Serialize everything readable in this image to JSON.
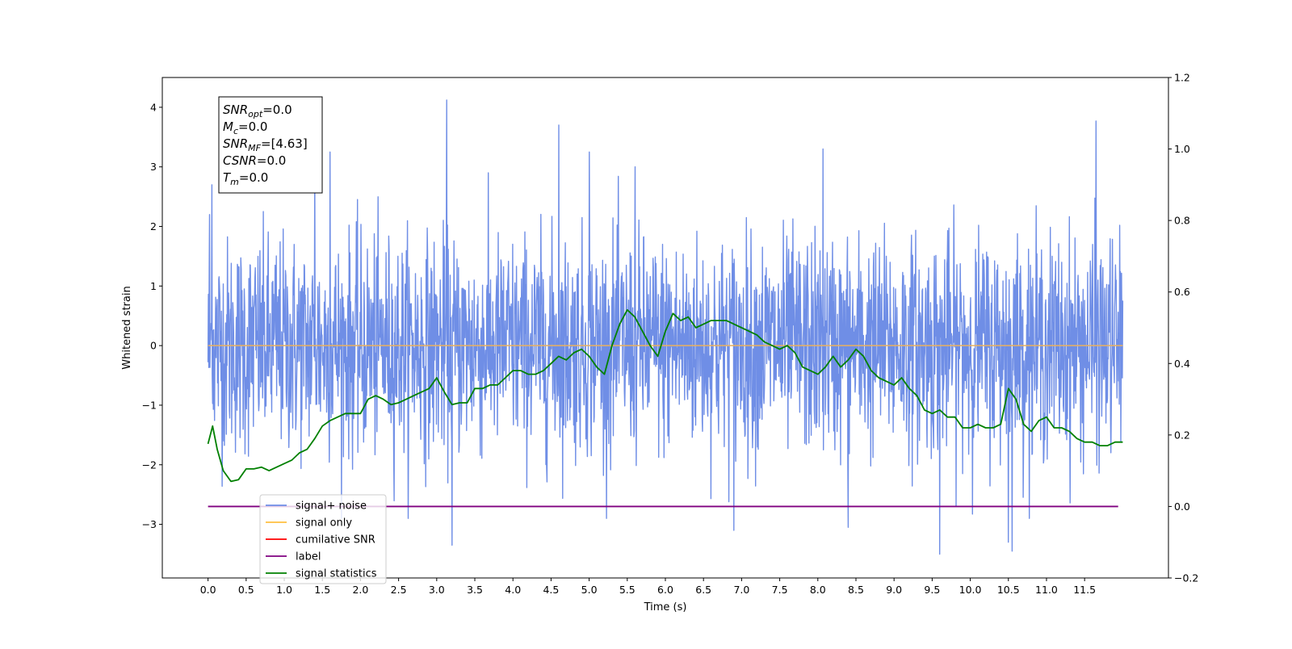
{
  "chart_data": {
    "type": "line",
    "title": "",
    "xlabel": "Time (s)",
    "ylabel": "Whitened strain",
    "xlim": [
      -0.6,
      12.6
    ],
    "ylim": [
      -3.9,
      4.5
    ],
    "y2lim": [
      -0.2,
      1.2
    ],
    "x_ticks": [
      "0.0",
      "0.5",
      "1.0",
      "1.5",
      "2.0",
      "2.5",
      "3.0",
      "3.5",
      "4.0",
      "4.5",
      "5.0",
      "5.5",
      "6.0",
      "6.5",
      "7.0",
      "7.5",
      "8.0",
      "8.5",
      "9.0",
      "9.5",
      "10.0",
      "10.5",
      "11.0",
      "11.5"
    ],
    "y_ticks": [
      "-3",
      "-2",
      "-1",
      "0",
      "1",
      "2",
      "3",
      "4"
    ],
    "y2_ticks": [
      "-0.2",
      "0.0",
      "0.2",
      "0.4",
      "0.6",
      "0.8",
      "1.0",
      "1.2"
    ],
    "grid": false,
    "legend_position": "lower-left",
    "legend": [
      "signal+ noise",
      "signal only",
      "cumilative SNR",
      "label",
      "signal statistics"
    ],
    "colors": {
      "noise": "#6f8ee6",
      "signal_only": "#ffbf40",
      "cumulative_snr": "#ff0000",
      "label": "#800080",
      "statistics": "#008000",
      "zero_line": "#e8b060"
    },
    "annotation_lines": [
      {
        "name": "SNR",
        "sub": "opt",
        "value": "=0.0"
      },
      {
        "name": "M",
        "sub": "c",
        "value": "=0.0"
      },
      {
        "name": "SNR",
        "sub": "MF",
        "value": "=[4.63]"
      },
      {
        "name": "CSNR",
        "sub": "",
        "value": "=0.0"
      },
      {
        "name": "T",
        "sub": "m",
        "value": "=0.0"
      }
    ],
    "series": [
      {
        "name": "signal+ noise",
        "axis": "left",
        "x_range": [
          0.0,
          12.0
        ],
        "noise_std": 0.9,
        "n_points": 2400,
        "notable_peaks": [
          {
            "x": 0.02,
            "y": 2.2
          },
          {
            "x": 0.05,
            "y": 2.7
          },
          {
            "x": 1.4,
            "y": 3.0
          },
          {
            "x": 1.6,
            "y": 3.25
          },
          {
            "x": 3.13,
            "y": 4.12
          },
          {
            "x": 3.2,
            "y": -3.35
          },
          {
            "x": 4.6,
            "y": 3.7
          },
          {
            "x": 5.0,
            "y": 3.25
          },
          {
            "x": 5.6,
            "y": 3.0
          },
          {
            "x": 8.07,
            "y": 3.3
          },
          {
            "x": 9.6,
            "y": -3.5
          },
          {
            "x": 10.5,
            "y": -3.3
          },
          {
            "x": 10.55,
            "y": -3.45
          },
          {
            "x": 11.65,
            "y": 3.77
          },
          {
            "x": 6.9,
            "y": -3.1
          },
          {
            "x": 8.4,
            "y": -3.05
          }
        ]
      },
      {
        "name": "signal only",
        "axis": "left",
        "x": [
          0.0,
          12.0
        ],
        "y": [
          0.0,
          0.0
        ]
      },
      {
        "name": "label",
        "axis": "right",
        "x": [
          0.0,
          12.0
        ],
        "y": [
          0.0,
          0.0
        ]
      },
      {
        "name": "signal statistics",
        "axis": "right",
        "x": [
          0.0,
          0.06,
          0.12,
          0.2,
          0.3,
          0.4,
          0.5,
          0.6,
          0.7,
          0.8,
          0.9,
          1.0,
          1.1,
          1.2,
          1.3,
          1.4,
          1.5,
          1.6,
          1.7,
          1.8,
          1.9,
          2.0,
          2.1,
          2.2,
          2.3,
          2.4,
          2.5,
          2.6,
          2.7,
          2.8,
          2.9,
          3.0,
          3.1,
          3.2,
          3.3,
          3.4,
          3.5,
          3.6,
          3.7,
          3.8,
          3.9,
          4.0,
          4.1,
          4.2,
          4.3,
          4.4,
          4.5,
          4.6,
          4.7,
          4.8,
          4.9,
          5.0,
          5.1,
          5.2,
          5.3,
          5.4,
          5.5,
          5.6,
          5.7,
          5.8,
          5.9,
          6.0,
          6.1,
          6.2,
          6.3,
          6.4,
          6.5,
          6.6,
          6.7,
          6.8,
          6.9,
          7.0,
          7.1,
          7.2,
          7.3,
          7.4,
          7.5,
          7.6,
          7.7,
          7.8,
          7.9,
          8.0,
          8.1,
          8.2,
          8.3,
          8.4,
          8.5,
          8.6,
          8.7,
          8.8,
          8.9,
          9.0,
          9.1,
          9.2,
          9.3,
          9.4,
          9.5,
          9.6,
          9.7,
          9.8,
          9.9,
          10.0,
          10.1,
          10.2,
          10.3,
          10.4,
          10.5,
          10.6,
          10.7,
          10.8,
          10.9,
          11.0,
          11.1,
          11.2,
          11.3,
          11.4,
          11.5,
          11.6,
          11.7,
          11.8,
          11.9,
          12.0
        ],
        "y": [
          0.175,
          0.225,
          0.16,
          0.1,
          0.07,
          0.075,
          0.105,
          0.105,
          0.11,
          0.1,
          0.11,
          0.12,
          0.13,
          0.15,
          0.16,
          0.19,
          0.225,
          0.24,
          0.25,
          0.26,
          0.26,
          0.26,
          0.3,
          0.31,
          0.3,
          0.285,
          0.29,
          0.3,
          0.31,
          0.32,
          0.33,
          0.36,
          0.32,
          0.285,
          0.29,
          0.29,
          0.33,
          0.33,
          0.34,
          0.34,
          0.36,
          0.38,
          0.38,
          0.37,
          0.37,
          0.38,
          0.4,
          0.42,
          0.41,
          0.43,
          0.44,
          0.42,
          0.39,
          0.37,
          0.45,
          0.51,
          0.55,
          0.53,
          0.49,
          0.45,
          0.42,
          0.49,
          0.54,
          0.52,
          0.53,
          0.5,
          0.51,
          0.52,
          0.52,
          0.52,
          0.51,
          0.5,
          0.49,
          0.48,
          0.46,
          0.45,
          0.44,
          0.45,
          0.43,
          0.39,
          0.38,
          0.37,
          0.39,
          0.42,
          0.39,
          0.41,
          0.44,
          0.42,
          0.38,
          0.36,
          0.35,
          0.34,
          0.36,
          0.33,
          0.31,
          0.27,
          0.26,
          0.27,
          0.25,
          0.25,
          0.22,
          0.22,
          0.23,
          0.22,
          0.22,
          0.23,
          0.33,
          0.3,
          0.23,
          0.21,
          0.24,
          0.25,
          0.22,
          0.22,
          0.21,
          0.19,
          0.18,
          0.18,
          0.17,
          0.17,
          0.18,
          0.18
        ]
      }
    ]
  }
}
